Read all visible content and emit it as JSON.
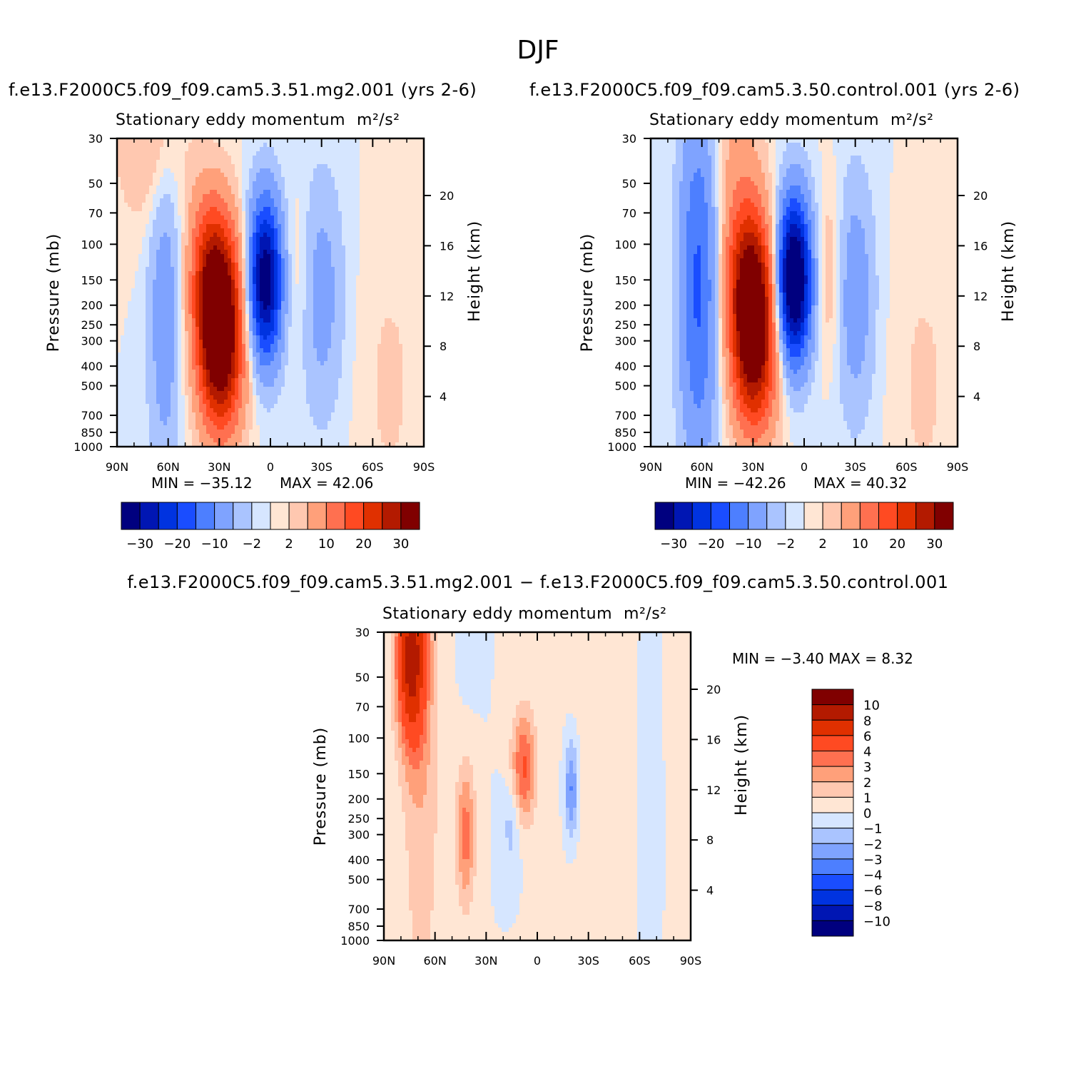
{
  "figure_title": "DJF",
  "colors": {
    "neg": [
      "#00007f",
      "#0016b3",
      "#0033e0",
      "#1a4dff",
      "#4d7fff",
      "#7fa3ff",
      "#aac4ff",
      "#d6e6ff"
    ],
    "pos": [
      "#ffe6d4",
      "#ffc8b0",
      "#ffa07a",
      "#ff7050",
      "#ff4a22",
      "#e03000",
      "#b31a00",
      "#800000"
    ],
    "diff_neg": [
      "#00007f",
      "#0016b3",
      "#0033e0",
      "#1a4dff",
      "#4d7fff",
      "#7fa3ff",
      "#aac4ff",
      "#d6e6ff"
    ],
    "diff_pos": [
      "#ffe6d4",
      "#ffc8b0",
      "#ffa07a",
      "#ff7050",
      "#ff4a22",
      "#e03000",
      "#b31a00",
      "#800000"
    ]
  },
  "chart_data": [
    {
      "type": "heatmap",
      "name": "f.e13.F2000C5.f09_f09.cam5.3.51.mg2.001  (yrs  2-6)",
      "title": "Stationary  eddy  momentum",
      "units": "m²/s²",
      "xlabel": "",
      "ylabel": "Pressure  (mb)",
      "y2label": "Height  (km)",
      "x_ticks": [
        "90N",
        "60N",
        "30N",
        "0",
        "30S",
        "60S",
        "90S"
      ],
      "x_values": [
        90,
        60,
        30,
        0,
        -30,
        -60,
        -90
      ],
      "y_ticks": [
        "30",
        "50",
        "70",
        "100",
        "150",
        "200",
        "250",
        "300",
        "400",
        "500",
        "700",
        "850",
        "1000"
      ],
      "y_values": [
        30,
        50,
        70,
        100,
        150,
        200,
        250,
        300,
        400,
        500,
        700,
        850,
        1000
      ],
      "y_scale": "log",
      "ylim": [
        1000,
        30
      ],
      "y2_ticks": [
        "20",
        "16",
        "12",
        "8",
        "4"
      ],
      "y2_values": [
        20,
        16,
        12,
        8,
        4
      ],
      "min_label": "MIN  =  −35.12",
      "max_label": "MAX  =    42.06",
      "min": -35.12,
      "max": 42.06,
      "levels": [
        -30,
        -25,
        -20,
        -15,
        -10,
        -5,
        -2,
        0,
        2,
        5,
        10,
        15,
        20,
        25,
        30
      ],
      "colorbar_labels": [
        "−30",
        "−20",
        "−10",
        "−2",
        "2",
        "10",
        "20",
        "30"
      ],
      "features": [
        {
          "lat": 30,
          "p": 230,
          "amp": 42,
          "wlat": 9,
          "wlog": 0.32
        },
        {
          "lat": 38,
          "p": 120,
          "amp": 10,
          "wlat": 8,
          "wlog": 0.28
        },
        {
          "lat": 28,
          "p": 500,
          "amp": 8,
          "wlat": 10,
          "wlog": 0.25
        },
        {
          "lat": 3,
          "p": 150,
          "amp": -35,
          "wlat": 7,
          "wlog": 0.28
        },
        {
          "lat": 62,
          "p": 200,
          "amp": -8,
          "wlat": 7,
          "wlog": 0.62
        },
        {
          "lat": -30,
          "p": 180,
          "amp": -7,
          "wlat": 9,
          "wlog": 0.42
        },
        {
          "lat": -15,
          "p": 140,
          "amp": 3,
          "wlat": 6,
          "wlog": 0.3
        },
        {
          "lat": 70,
          "p": 30,
          "amp": 6,
          "wlat": 14,
          "wlog": 0.3
        },
        {
          "lat": -70,
          "p": 500,
          "amp": 2.5,
          "wlat": 12,
          "wlog": 0.5
        }
      ]
    },
    {
      "type": "heatmap",
      "name": "f.e13.F2000C5.f09_f09.cam5.3.50.control.001  (yrs  2-6)",
      "title": "Stationary  eddy  momentum",
      "units": "m²/s²",
      "xlabel": "",
      "ylabel": "Pressure  (mb)",
      "y2label": "Height  (km)",
      "x_ticks": [
        "90N",
        "60N",
        "30N",
        "0",
        "30S",
        "60S",
        "90S"
      ],
      "x_values": [
        90,
        60,
        30,
        0,
        -30,
        -60,
        -90
      ],
      "y_ticks": [
        "30",
        "50",
        "70",
        "100",
        "150",
        "200",
        "250",
        "300",
        "400",
        "500",
        "700",
        "850",
        "1000"
      ],
      "y_values": [
        30,
        50,
        70,
        100,
        150,
        200,
        250,
        300,
        400,
        500,
        700,
        850,
        1000
      ],
      "y_scale": "log",
      "ylim": [
        1000,
        30
      ],
      "y2_ticks": [
        "20",
        "16",
        "12",
        "8",
        "4"
      ],
      "y2_values": [
        20,
        16,
        12,
        8,
        4
      ],
      "min_label": "MIN  =  −42.26",
      "max_label": "MAX  =    40.32",
      "min": -42.26,
      "max": 40.32,
      "levels": [
        -30,
        -25,
        -20,
        -15,
        -10,
        -5,
        -2,
        0,
        2,
        5,
        10,
        15,
        20,
        25,
        30
      ],
      "colorbar_labels": [
        "−30",
        "−20",
        "−10",
        "−2",
        "2",
        "10",
        "20",
        "30"
      ],
      "features": [
        {
          "lat": 30,
          "p": 220,
          "amp": 40,
          "wlat": 9,
          "wlog": 0.33
        },
        {
          "lat": 38,
          "p": 120,
          "amp": 8,
          "wlat": 8,
          "wlog": 0.28
        },
        {
          "lat": 28,
          "p": 500,
          "amp": 7,
          "wlat": 10,
          "wlog": 0.25
        },
        {
          "lat": 6,
          "p": 150,
          "amp": -42,
          "wlat": 7,
          "wlog": 0.28
        },
        {
          "lat": 62,
          "p": 160,
          "amp": -16,
          "wlat": 8,
          "wlog": 0.62
        },
        {
          "lat": -30,
          "p": 180,
          "amp": -8,
          "wlat": 8,
          "wlog": 0.42
        },
        {
          "lat": -15,
          "p": 140,
          "amp": 5,
          "wlat": 5,
          "wlog": 0.3
        },
        {
          "lat": 40,
          "p": 30,
          "amp": 5,
          "wlat": 10,
          "wlog": 0.3
        },
        {
          "lat": -70,
          "p": 500,
          "amp": 2.5,
          "wlat": 12,
          "wlog": 0.5
        }
      ]
    },
    {
      "type": "heatmap",
      "name": "f.e13.F2000C5.f09_f09.cam5.3.51.mg2.001  −  f.e13.F2000C5.f09_f09.cam5.3.50.control.001",
      "title": "Stationary  eddy  momentum",
      "units": "m²/s²",
      "xlabel": "",
      "ylabel": "Pressure  (mb)",
      "y2label": "Height  (km)",
      "x_ticks": [
        "90N",
        "60N",
        "30N",
        "0",
        "30S",
        "60S",
        "90S"
      ],
      "x_values": [
        90,
        60,
        30,
        0,
        -30,
        -60,
        -90
      ],
      "y_ticks": [
        "30",
        "50",
        "70",
        "100",
        "150",
        "200",
        "250",
        "300",
        "400",
        "500",
        "700",
        "850",
        "1000"
      ],
      "y_values": [
        30,
        50,
        70,
        100,
        150,
        200,
        250,
        300,
        400,
        500,
        700,
        850,
        1000
      ],
      "y_scale": "log",
      "ylim": [
        1000,
        30
      ],
      "y2_ticks": [
        "20",
        "16",
        "12",
        "8",
        "4"
      ],
      "y2_values": [
        20,
        16,
        12,
        8,
        4
      ],
      "min_label": "MIN  =     −3.40    MAX  =      8.32",
      "min": -3.4,
      "max": 8.32,
      "levels": [
        -10,
        -8,
        -6,
        -4,
        -3,
        -2,
        -1,
        0,
        1,
        2,
        3,
        4,
        6,
        8,
        10
      ],
      "colorbar_labels": [
        "10",
        "8",
        "6",
        "4",
        "3",
        "2",
        "1",
        "0",
        "−1",
        "−2",
        "−3",
        "−4",
        "−6",
        "−8",
        "−10"
      ],
      "features": [
        {
          "lat": 74,
          "p": 40,
          "amp": 8.3,
          "wlat": 6,
          "wlog": 0.3
        },
        {
          "lat": 68,
          "p": 150,
          "amp": 1.8,
          "wlat": 8,
          "wlog": 0.9
        },
        {
          "lat": 42,
          "p": 300,
          "amp": 3.5,
          "wlat": 4,
          "wlog": 0.25
        },
        {
          "lat": 8,
          "p": 140,
          "amp": 4.2,
          "wlat": 5,
          "wlog": 0.2
        },
        {
          "lat": -20,
          "p": 180,
          "amp": -3.4,
          "wlat": 3,
          "wlog": 0.18
        },
        {
          "lat": 15,
          "p": 270,
          "amp": -1.6,
          "wlat": 4,
          "wlog": 0.15
        },
        {
          "lat": -65,
          "p": 300,
          "amp": -0.9,
          "wlat": 3,
          "wlog": 0.6
        },
        {
          "lat": 40,
          "p": 30,
          "amp": -0.8,
          "wlat": 4,
          "wlog": 0.2
        },
        {
          "lat": -30,
          "p": 300,
          "amp": 0.5,
          "wlat": 15,
          "wlog": 1.2
        }
      ]
    }
  ]
}
